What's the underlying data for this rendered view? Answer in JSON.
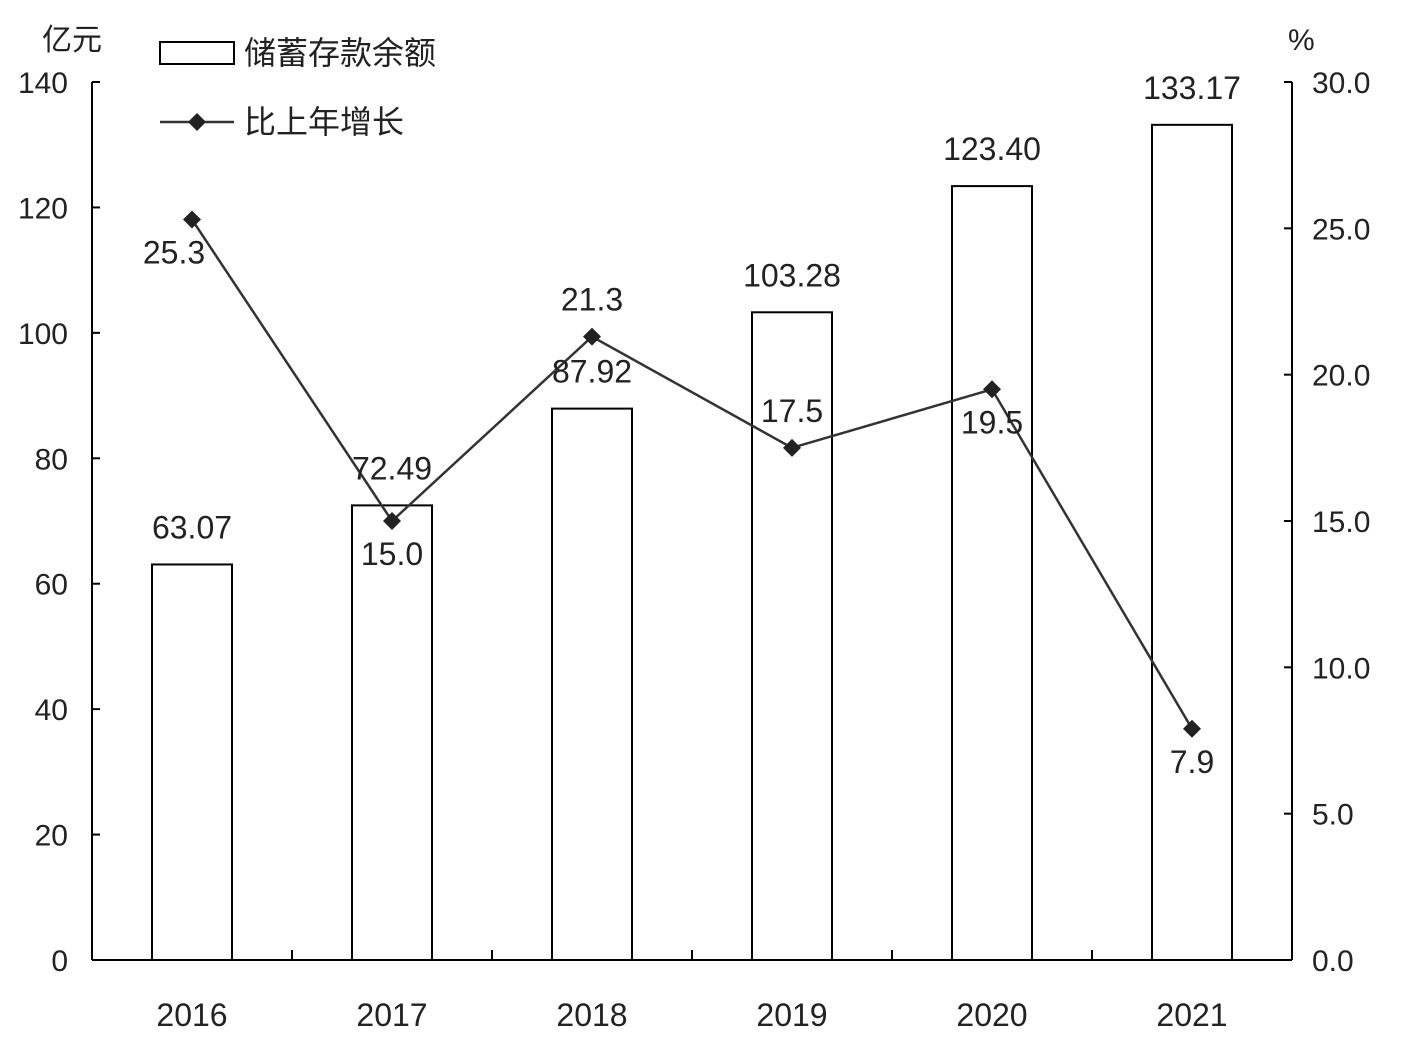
{
  "chart_data": {
    "type": "bar",
    "title": "",
    "categories": [
      "2016",
      "2017",
      "2018",
      "2019",
      "2020",
      "2021"
    ],
    "series": [
      {
        "name": "储蓄存款余额",
        "type": "bar",
        "axis": "left",
        "values": [
          63.07,
          72.49,
          87.92,
          103.28,
          123.4,
          133.17
        ],
        "labels": [
          "63.07",
          "72.49",
          "87.92",
          "103.28",
          "123.40",
          "133.17"
        ]
      },
      {
        "name": "比上年增长",
        "type": "line",
        "axis": "right",
        "marker": "diamond",
        "values": [
          25.3,
          15.0,
          21.3,
          17.5,
          19.5,
          7.9
        ],
        "labels": [
          "25.3",
          "15.0",
          "21.3",
          "17.5",
          "19.5",
          "7.9"
        ]
      }
    ],
    "y_left": {
      "unit": "亿元",
      "ylim": [
        0,
        140
      ],
      "ticks": [
        "0",
        "20",
        "40",
        "60",
        "80",
        "100",
        "120",
        "140"
      ]
    },
    "y_right": {
      "unit": "%",
      "ylim": [
        0,
        30
      ],
      "ticks": [
        "0.0",
        "5.0",
        "10.0",
        "15.0",
        "20.0",
        "25.0",
        "30.0"
      ]
    },
    "grid": false,
    "legend_position": "top-left",
    "colors": {
      "bar_fill": "#ffffff",
      "bar_stroke": "#000000",
      "line": "#333333",
      "axis": "#000000"
    }
  }
}
